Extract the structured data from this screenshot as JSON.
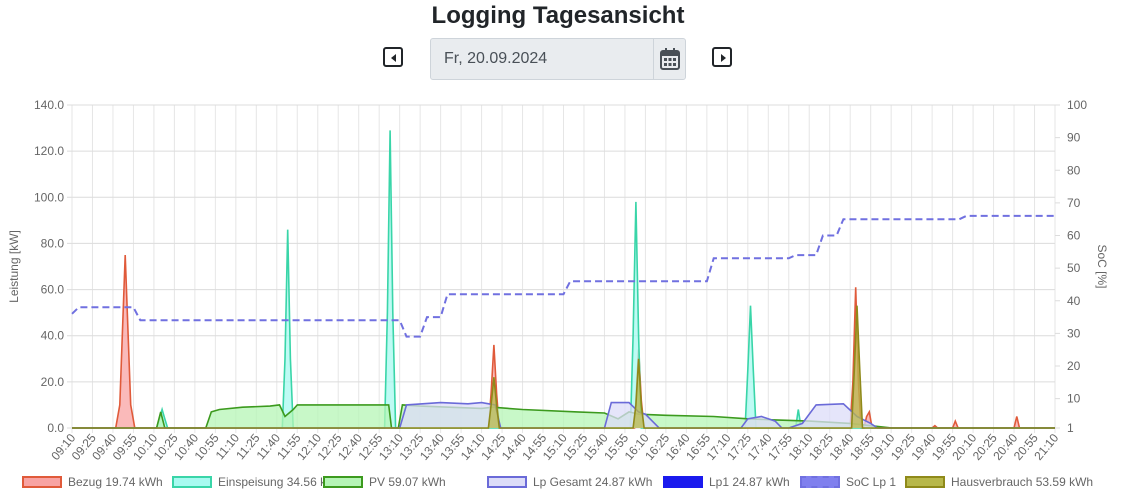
{
  "page": {
    "title": "Logging Tagesansicht",
    "date_value": "Fr, 20.09.2024",
    "prev_icon": "caret-left-square-icon",
    "next_icon": "caret-right-square-icon",
    "calendar_icon": "calendar-icon"
  },
  "chart_data": {
    "type": "area",
    "ylabel": "Leistung [kW]",
    "y2label": "SoC [%]",
    "ylim": [
      0,
      140
    ],
    "y2lim": [
      1,
      100
    ],
    "y_ticks": [
      "0.0",
      "20.0",
      "40.0",
      "60.0",
      "80.0",
      "100.0",
      "120.0",
      "140.0"
    ],
    "y2_ticks": [
      "1",
      "10",
      "20",
      "30",
      "40",
      "50",
      "60",
      "70",
      "80",
      "90",
      "100"
    ],
    "x_start": "09:10",
    "x_end": "21:10",
    "x_ticks": [
      "09:10",
      "09:25",
      "09:40",
      "09:55",
      "10:10",
      "10:25",
      "10:40",
      "10:55",
      "11:10",
      "11:25",
      "11:40",
      "11:55",
      "12:10",
      "12:25",
      "12:40",
      "12:55",
      "13:10",
      "13:25",
      "13:40",
      "13:55",
      "14:10",
      "14:25",
      "14:40",
      "14:55",
      "15:10",
      "15:25",
      "15:40",
      "15:55",
      "16:10",
      "16:25",
      "16:40",
      "16:55",
      "17:10",
      "17:25",
      "17:40",
      "17:55",
      "18:10",
      "18:25",
      "18:40",
      "18:55",
      "19:10",
      "19:25",
      "19:40",
      "19:55",
      "20:10",
      "20:25",
      "20:40",
      "20:55",
      "21:10"
    ],
    "grid": true,
    "legend_position": "bottom",
    "series": [
      {
        "name": "Bezug 19.74 kWh",
        "axis": "left",
        "fill": "#f8a3a3",
        "stroke": "#e05a3a",
        "dashed": false,
        "points": [
          [
            "09:10",
            0
          ],
          [
            "09:42",
            0
          ],
          [
            "09:45",
            10
          ],
          [
            "09:49",
            75
          ],
          [
            "09:53",
            10
          ],
          [
            "09:56",
            0
          ],
          [
            "14:15",
            0
          ],
          [
            "14:17",
            15
          ],
          [
            "14:19",
            36
          ],
          [
            "14:21",
            15
          ],
          [
            "14:23",
            0
          ],
          [
            "16:02",
            0
          ],
          [
            "16:03",
            12
          ],
          [
            "16:05",
            34
          ],
          [
            "16:07",
            12
          ],
          [
            "16:09",
            0
          ],
          [
            "18:40",
            0
          ],
          [
            "18:42",
            20
          ],
          [
            "18:44",
            61
          ],
          [
            "18:46",
            20
          ],
          [
            "18:48",
            0
          ],
          [
            "18:50",
            0
          ],
          [
            "18:52",
            5
          ],
          [
            "18:54",
            7
          ],
          [
            "18:56",
            0
          ],
          [
            "19:40",
            0
          ],
          [
            "19:42",
            1
          ],
          [
            "19:44",
            0
          ],
          [
            "19:55",
            0
          ],
          [
            "19:57",
            3
          ],
          [
            "19:59",
            0
          ],
          [
            "20:40",
            0
          ],
          [
            "20:42",
            5
          ],
          [
            "20:44",
            0
          ],
          [
            "21:10",
            0
          ]
        ]
      },
      {
        "name": "Einspeisung 34.56 kWh",
        "axis": "left",
        "fill": "#a8faf0",
        "stroke": "#39d5a8",
        "dashed": false,
        "points": [
          [
            "09:10",
            0
          ],
          [
            "10:12",
            0
          ],
          [
            "10:14",
            4
          ],
          [
            "10:16",
            8
          ],
          [
            "10:18",
            4
          ],
          [
            "10:20",
            0
          ],
          [
            "11:44",
            0
          ],
          [
            "11:46",
            30
          ],
          [
            "11:48",
            86
          ],
          [
            "11:50",
            30
          ],
          [
            "11:52",
            0
          ],
          [
            "12:59",
            0
          ],
          [
            "13:01",
            50
          ],
          [
            "13:03",
            129
          ],
          [
            "13:05",
            50
          ],
          [
            "13:07",
            0
          ],
          [
            "15:59",
            0
          ],
          [
            "16:01",
            40
          ],
          [
            "16:03",
            98
          ],
          [
            "16:05",
            40
          ],
          [
            "16:07",
            0
          ],
          [
            "17:23",
            0
          ],
          [
            "17:25",
            25
          ],
          [
            "17:27",
            53
          ],
          [
            "17:29",
            25
          ],
          [
            "17:31",
            0
          ],
          [
            "18:00",
            0
          ],
          [
            "18:02",
            8
          ],
          [
            "18:04",
            0
          ],
          [
            "21:10",
            0
          ]
        ]
      },
      {
        "name": "PV 59.07 kWh",
        "axis": "left",
        "fill": "#b5f5b5",
        "stroke": "#3c9a1e",
        "dashed": false,
        "points": [
          [
            "09:10",
            0
          ],
          [
            "10:12",
            0
          ],
          [
            "10:15",
            7
          ],
          [
            "10:18",
            0
          ],
          [
            "10:48",
            0
          ],
          [
            "10:52",
            7
          ],
          [
            "10:58",
            8
          ],
          [
            "11:15",
            9
          ],
          [
            "11:35",
            9.5
          ],
          [
            "11:42",
            10
          ],
          [
            "11:46",
            5
          ],
          [
            "11:52",
            8
          ],
          [
            "11:55",
            10
          ],
          [
            "12:30",
            10
          ],
          [
            "12:58",
            10
          ],
          [
            "13:02",
            10
          ],
          [
            "13:04",
            0
          ],
          [
            "13:09",
            0
          ],
          [
            "13:12",
            10
          ],
          [
            "13:25",
            9.5
          ],
          [
            "14:10",
            8.5
          ],
          [
            "14:18",
            9
          ],
          [
            "14:40",
            8
          ],
          [
            "15:20",
            7
          ],
          [
            "15:40",
            6.5
          ],
          [
            "15:50",
            4
          ],
          [
            "15:58",
            7
          ],
          [
            "16:05",
            6
          ],
          [
            "16:25",
            5.5
          ],
          [
            "17:00",
            5
          ],
          [
            "17:25",
            4
          ],
          [
            "17:45",
            3.5
          ],
          [
            "18:10",
            3
          ],
          [
            "18:40",
            2
          ],
          [
            "18:55",
            1
          ],
          [
            "19:10",
            0
          ],
          [
            "21:10",
            0
          ]
        ]
      },
      {
        "name": "Lp Gesamt 24.87 kWh",
        "axis": "left",
        "fill": "#dcdcf8",
        "stroke": "#6a6ad8",
        "dashed": false,
        "points": [
          [
            "09:10",
            0
          ],
          [
            "13:10",
            0
          ],
          [
            "13:15",
            10
          ],
          [
            "13:40",
            11
          ],
          [
            "14:00",
            10.5
          ],
          [
            "14:10",
            11
          ],
          [
            "14:20",
            10
          ],
          [
            "14:24",
            0
          ],
          [
            "15:40",
            0
          ],
          [
            "15:45",
            11
          ],
          [
            "15:58",
            11
          ],
          [
            "16:05",
            7
          ],
          [
            "16:10",
            6
          ],
          [
            "16:20",
            0
          ],
          [
            "17:20",
            0
          ],
          [
            "17:25",
            4
          ],
          [
            "17:35",
            5
          ],
          [
            "17:45",
            3
          ],
          [
            "17:50",
            0
          ],
          [
            "17:55",
            0
          ],
          [
            "18:05",
            2
          ],
          [
            "18:15",
            10
          ],
          [
            "18:35",
            10.5
          ],
          [
            "18:45",
            5
          ],
          [
            "18:55",
            2
          ],
          [
            "19:00",
            0
          ],
          [
            "21:10",
            0
          ]
        ]
      },
      {
        "name": "Lp1 24.87 kWh",
        "axis": "left",
        "fill": "#1a1aee",
        "stroke": "#1a1aee",
        "dashed": false,
        "legend_only": true,
        "points": []
      },
      {
        "name": "SoC Lp 1",
        "axis": "right",
        "fill": "none",
        "stroke": "#7070e0",
        "dashed": true,
        "points": [
          [
            "09:10",
            36
          ],
          [
            "09:15",
            38
          ],
          [
            "09:55",
            38
          ],
          [
            "10:00",
            34
          ],
          [
            "13:10",
            34
          ],
          [
            "13:15",
            29
          ],
          [
            "13:25",
            29
          ],
          [
            "13:30",
            35
          ],
          [
            "13:40",
            35
          ],
          [
            "13:45",
            42
          ],
          [
            "15:10",
            42
          ],
          [
            "15:15",
            46
          ],
          [
            "16:55",
            46
          ],
          [
            "17:00",
            53
          ],
          [
            "17:55",
            53
          ],
          [
            "18:00",
            54
          ],
          [
            "18:15",
            54
          ],
          [
            "18:20",
            60
          ],
          [
            "18:30",
            60
          ],
          [
            "18:35",
            65
          ],
          [
            "20:00",
            65
          ],
          [
            "20:05",
            66
          ],
          [
            "21:10",
            66
          ]
        ]
      },
      {
        "name": "Hausverbrauch 53.59 kWh",
        "axis": "left",
        "fill": "#b8b84a",
        "stroke": "#8f8a1a",
        "dashed": false,
        "points": [
          [
            "09:10",
            0
          ],
          [
            "14:15",
            0
          ],
          [
            "14:17",
            10
          ],
          [
            "14:19",
            22
          ],
          [
            "14:21",
            10
          ],
          [
            "14:23",
            0
          ],
          [
            "16:01",
            0
          ],
          [
            "16:03",
            10
          ],
          [
            "16:05",
            30
          ],
          [
            "16:07",
            10
          ],
          [
            "16:09",
            0
          ],
          [
            "18:41",
            0
          ],
          [
            "18:43",
            25
          ],
          [
            "18:45",
            53
          ],
          [
            "18:47",
            25
          ],
          [
            "18:49",
            0
          ],
          [
            "21:10",
            0
          ]
        ]
      }
    ]
  }
}
